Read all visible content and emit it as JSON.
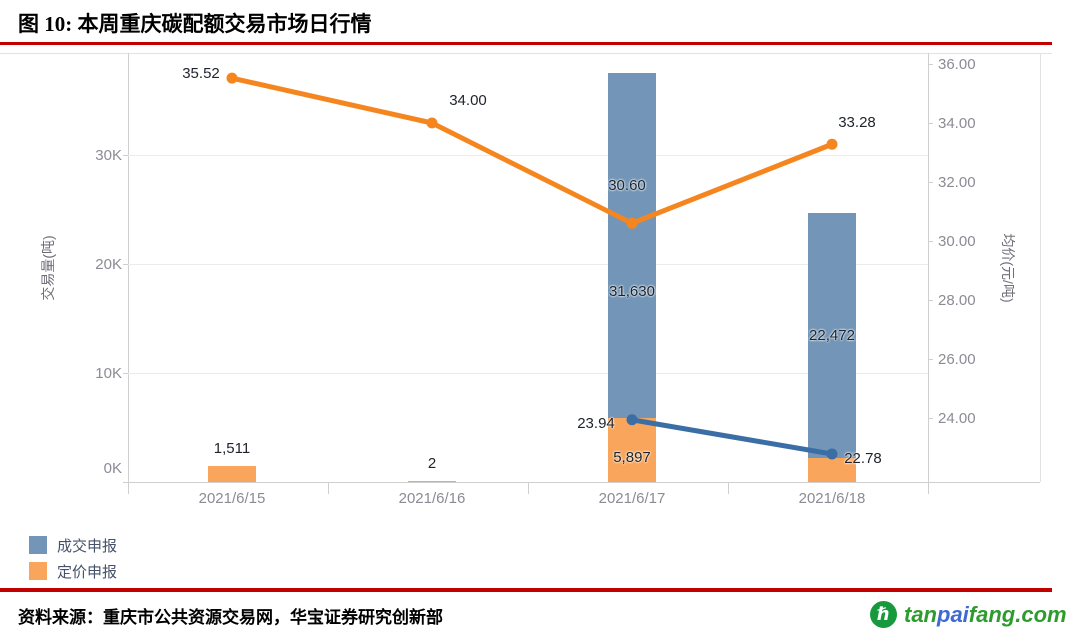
{
  "title": "图 10:  本周重庆碳配额交易市场日行情",
  "chart_data": {
    "type": "bar",
    "subtype": "dual-axis combo: stacked volume bars (left axis) + average price lines with markers (right axis)",
    "categories": [
      "2021/6/15",
      "2021/6/16",
      "2021/6/17",
      "2021/6/18"
    ],
    "left_axis": {
      "label": "交易量(吨)",
      "ticks": [
        "0K",
        "10K",
        "20K",
        "30K"
      ],
      "tick_values": [
        0,
        10000,
        20000,
        30000
      ],
      "range": [
        0,
        39000
      ]
    },
    "right_axis": {
      "label": "均价(元/吨)",
      "ticks": [
        "24.00",
        "26.00",
        "28.00",
        "30.00",
        "32.00",
        "34.00",
        "36.00"
      ],
      "tick_values": [
        24,
        26,
        28,
        30,
        32,
        34,
        36
      ],
      "range": [
        22.2,
        36.8
      ]
    },
    "bar_series": [
      {
        "name": "定价申报",
        "color": "#F9A65C",
        "values": [
          1511,
          2,
          5897,
          2200
        ],
        "labels": [
          "1,511",
          "2",
          "5,897",
          ""
        ]
      },
      {
        "name": "成交申报",
        "color": "#7396B8",
        "values": [
          0,
          0,
          31630,
          22472
        ],
        "labels": [
          "",
          "",
          "31,630",
          "22,472"
        ]
      }
    ],
    "line_series": [
      {
        "name": "定价申报",
        "color": "#F5861F",
        "values": [
          35.52,
          34.0,
          30.6,
          33.28
        ],
        "labels": [
          "35.52",
          "34.00",
          "30.60",
          "33.28"
        ]
      },
      {
        "name": "成交申报",
        "color": "#3A6EA5",
        "values": [
          null,
          null,
          23.94,
          22.78
        ],
        "labels": [
          "",
          "",
          "23.94",
          "22.78"
        ]
      }
    ],
    "legend": [
      {
        "label": "成交申报",
        "color": "#7396B8"
      },
      {
        "label": "定价申报",
        "color": "#F9A65C"
      }
    ],
    "grid": "horizontal gridlines at left-axis ticks",
    "legend_position": "bottom-left"
  },
  "footer": {
    "source": "资料来源：重庆市公共资源交易网，华宝证券研究创新部"
  },
  "logo": {
    "icon_letter": "ℏ",
    "parts": [
      {
        "text": "tan",
        "color": "#2E9B2E"
      },
      {
        "text": "pai",
        "color": "#3F6AD1"
      },
      {
        "text": "fang",
        "color": "#2E9B2E"
      },
      {
        "text": ".com",
        "color": "#2E9B2E"
      }
    ]
  }
}
